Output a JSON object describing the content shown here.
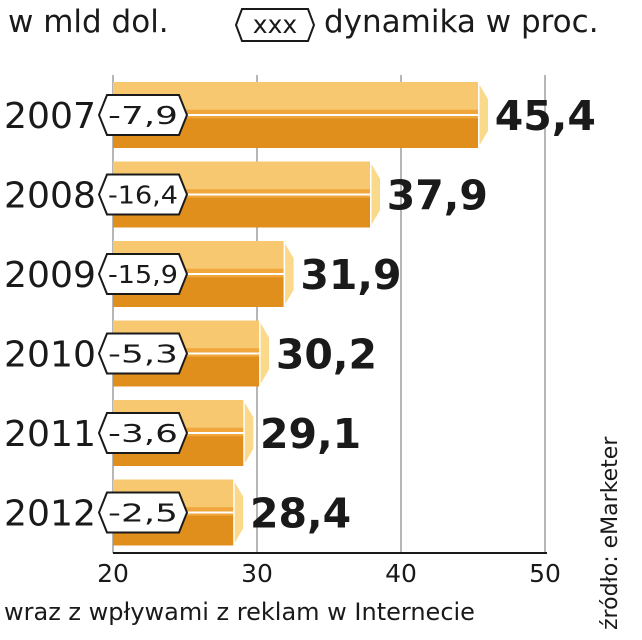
{
  "unit_label": "w mld dol.",
  "legend": {
    "marker_text": "xxx",
    "label": "dynamika w proc."
  },
  "footnote": "wraz z wpływami z reklam w Internecie",
  "source": "źródło: eMarketer",
  "colors": {
    "bar_main": "#f0a63a",
    "bar_light": "#f7c870",
    "bar_dark": "#e08f1c",
    "bar_cap": "#fbd98a",
    "grid": "#9e9e9e",
    "text": "#1a1a1a"
  },
  "chart_data": {
    "type": "bar",
    "orientation": "horizontal",
    "categories": [
      "2007",
      "2008",
      "2009",
      "2010",
      "2011",
      "2012"
    ],
    "values": [
      45.4,
      37.9,
      31.9,
      30.2,
      29.1,
      28.4
    ],
    "value_labels": [
      "45,4",
      "37,9",
      "31,9",
      "30,2",
      "29,1",
      "28,4"
    ],
    "dynamics": [
      "-7,9",
      "-16,4",
      "-15,9",
      "-5,3",
      "-3,6",
      "-2,5"
    ],
    "xlim": [
      20,
      50
    ],
    "xticks": [
      20,
      30,
      40,
      50
    ],
    "xtick_labels": [
      "20",
      "30",
      "40",
      "50"
    ],
    "grid": true
  }
}
